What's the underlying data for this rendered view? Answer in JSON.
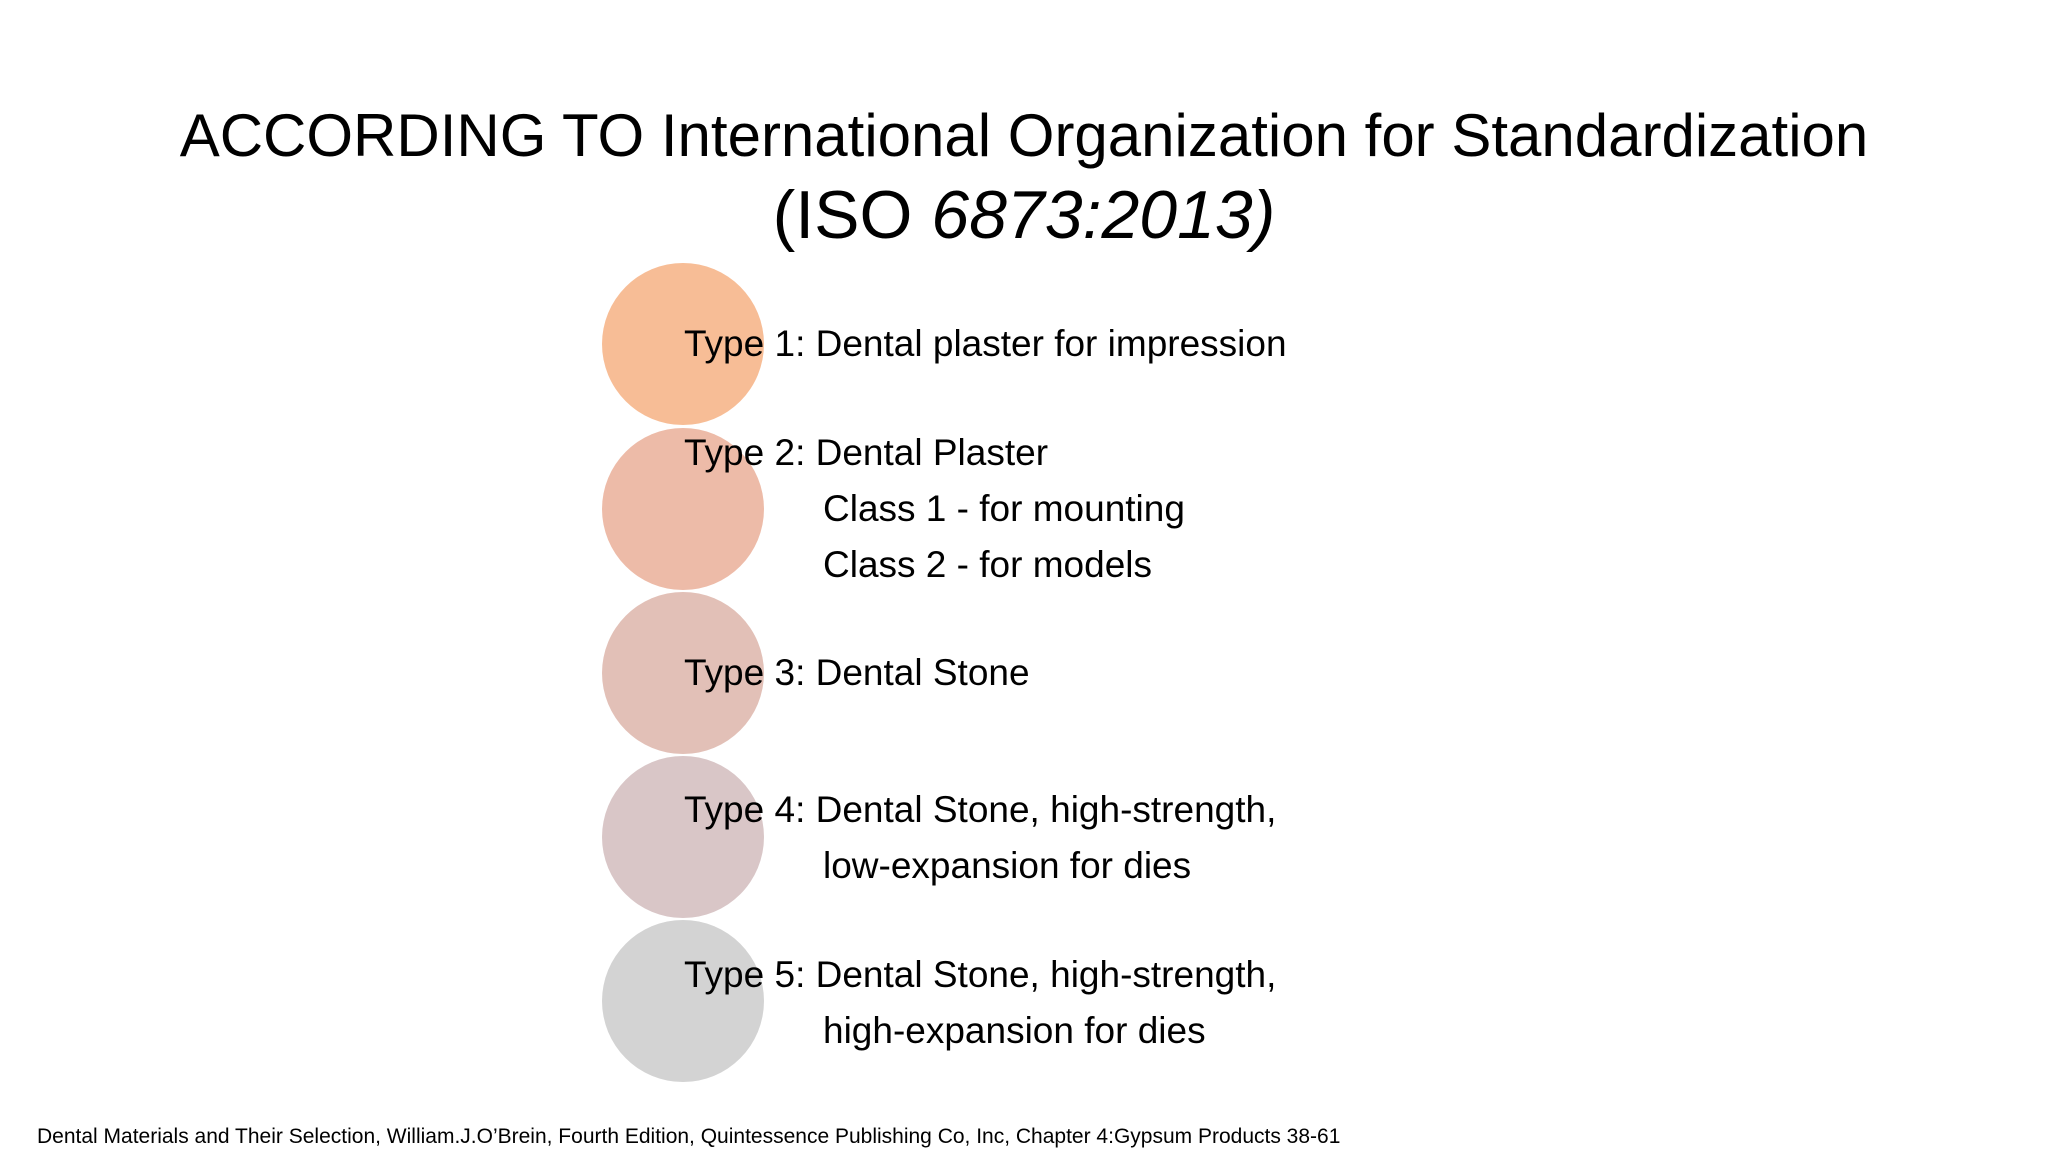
{
  "title": {
    "line1": "ACCORDING TO International Organization for Standardization",
    "line2_open": "(ISO ",
    "line2_number": "6873:2013)"
  },
  "types": [
    {
      "label": "Type 1: Dental plaster for impression",
      "sublines": [],
      "circle_color": "#F7BD96"
    },
    {
      "label": "Type 2: Dental Plaster",
      "sublines": [
        "Class 1 - for mounting",
        "Class 2 - for models"
      ],
      "circle_color": "#EDBBA8"
    },
    {
      "label": "Type 3: Dental Stone",
      "sublines": [],
      "circle_color": "#E2C0B7"
    },
    {
      "label": "Type 4: Dental Stone, high-strength,",
      "sublines": [
        "low-expansion for dies"
      ],
      "circle_color": "#D9C6C7"
    },
    {
      "label": "Type 5: Dental Stone, high-strength,",
      "sublines": [
        "high-expansion for dies"
      ],
      "circle_color": "#D3D3D3"
    }
  ],
  "footer": {
    "citation": "Dental Materials and Their Selection, William.J.O’Brein, Fourth Edition, Quintessence Publishing Co, Inc, Chapter 4:Gypsum Products 38-61"
  }
}
